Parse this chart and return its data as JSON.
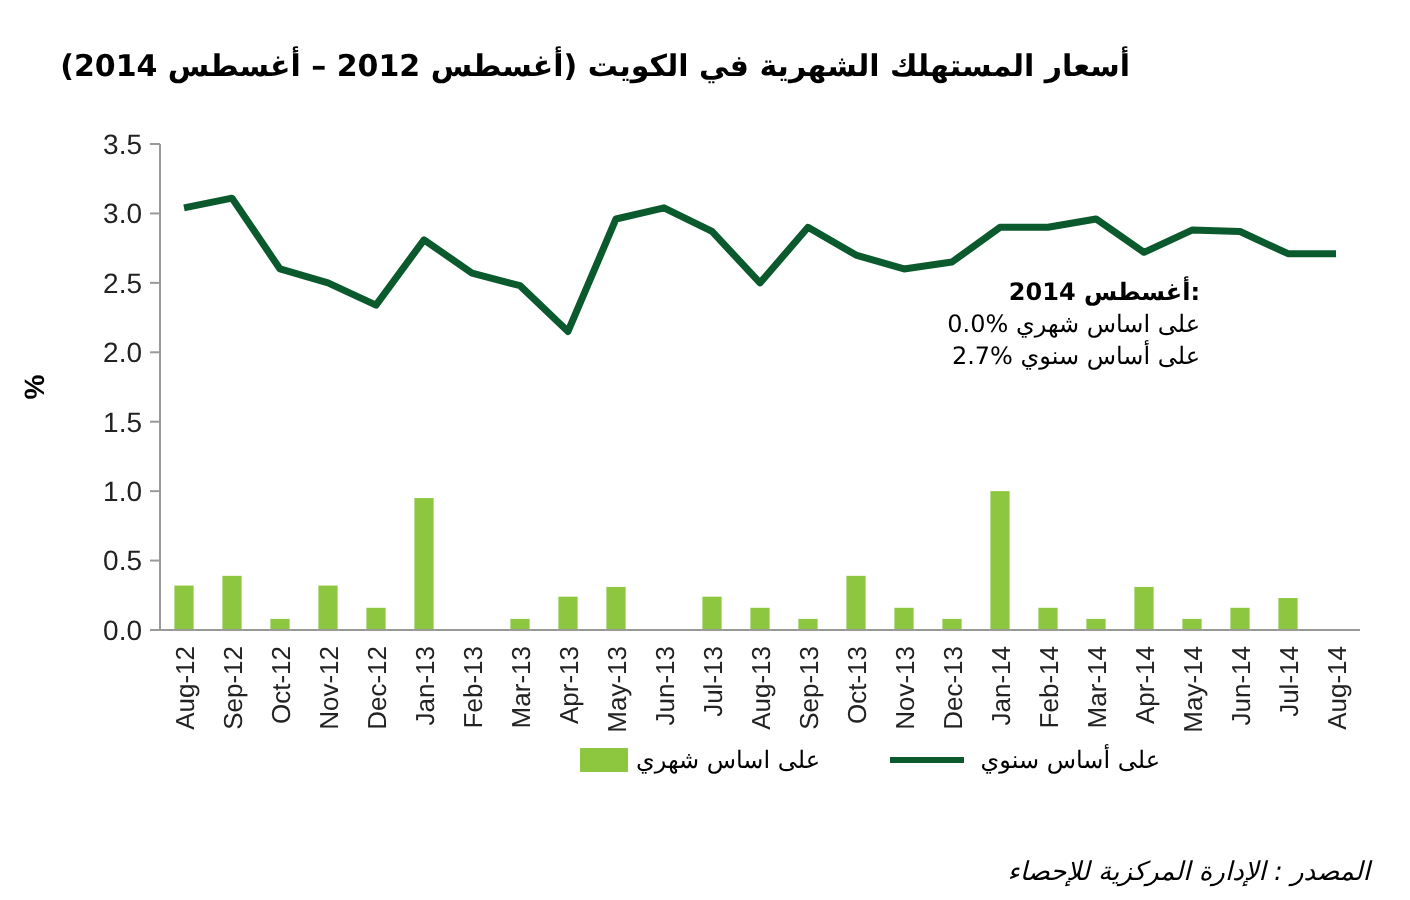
{
  "chart_data": {
    "type": "bar",
    "title": "أسعار المستهلك الشهرية في الكويت (أغسطس 2012 – أغسطس 2014)",
    "ylabel": "%",
    "categories": [
      "Aug-12",
      "Sep-12",
      "Oct-12",
      "Nov-12",
      "Dec-12",
      "Jan-13",
      "Feb-13",
      "Mar-13",
      "Apr-13",
      "May-13",
      "Jun-13",
      "Jul-13",
      "Aug-13",
      "Sep-13",
      "Oct-13",
      "Nov-13",
      "Dec-13",
      "Jan-14",
      "Feb-14",
      "Mar-14",
      "Apr-14",
      "May-14",
      "Jun-14",
      "Jul-14",
      "Aug-14"
    ],
    "series": [
      {
        "name": "على اساس شهري",
        "color": "#8dc63f",
        "values": [
          0.32,
          0.39,
          0.08,
          0.32,
          0.16,
          0.95,
          0,
          0.08,
          0.24,
          0.31,
          0,
          0.24,
          0.16,
          0.08,
          0.39,
          0.16,
          0.08,
          1.0,
          0.16,
          0.08,
          0.31,
          0.08,
          0.16,
          0.23,
          0
        ]
      },
      {
        "name": "على أساس سنوي",
        "type": "line",
        "color": "#0b5a2e",
        "values": [
          3.04,
          3.11,
          2.6,
          2.5,
          2.34,
          2.81,
          2.57,
          2.48,
          2.15,
          2.96,
          3.04,
          2.87,
          2.5,
          2.9,
          2.7,
          2.6,
          2.65,
          2.9,
          2.9,
          2.96,
          2.72,
          2.88,
          2.87,
          2.71,
          2.71
        ]
      }
    ],
    "ylim": [
      0,
      3.5
    ],
    "yticks": [
      {
        "value": 0,
        "label": "0.0"
      },
      {
        "value": 0.5,
        "label": "0.5"
      },
      {
        "value": 1,
        "label": "1.0"
      },
      {
        "value": 1.5,
        "label": "1.5"
      },
      {
        "value": 2,
        "label": "2.0"
      },
      {
        "value": 2.5,
        "label": "2.5"
      },
      {
        "value": 3,
        "label": "3.0"
      },
      {
        "value": 3.5,
        "label": "3.5"
      }
    ],
    "grid": false,
    "legend": "bottom",
    "marker": "none",
    "line_style": "solid",
    "annotations": [
      "أغسطس 2014:",
      "0.0% على اساس شهري",
      "2.7% على أساس سنوي",
      "المصدر : الإدارة المركزية للإحصاء"
    ]
  }
}
